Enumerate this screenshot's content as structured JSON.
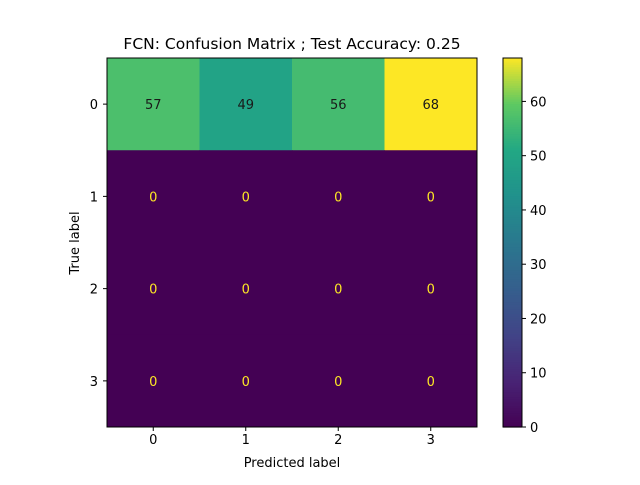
{
  "chart_data": {
    "type": "heatmap",
    "title": "FCN: Confusion Matrix ; Test Accuracy: 0.25",
    "xlabel": "Predicted label",
    "ylabel": "True label",
    "x_categories": [
      "0",
      "1",
      "2",
      "3"
    ],
    "y_categories": [
      "0",
      "1",
      "2",
      "3"
    ],
    "values": [
      [
        57,
        49,
        56,
        68
      ],
      [
        0,
        0,
        0,
        0
      ],
      [
        0,
        0,
        0,
        0
      ],
      [
        0,
        0,
        0,
        0
      ]
    ],
    "colormap": "viridis",
    "colorbar": {
      "range": [
        0,
        68
      ],
      "ticks": [
        0,
        10,
        20,
        30,
        40,
        50,
        60
      ]
    },
    "text_colors": {
      "on_dark": "#fde725",
      "on_light": "#1a1a1a"
    },
    "grid": false
  }
}
